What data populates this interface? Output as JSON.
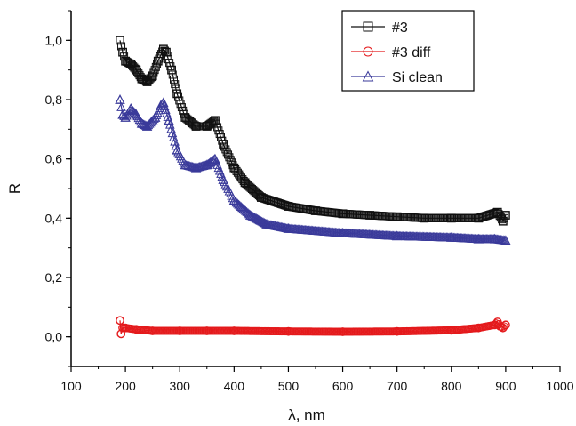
{
  "chart_data": {
    "type": "scatter",
    "title": "",
    "xlabel": "λ, nm",
    "ylabel": "R",
    "xlim": [
      100,
      1000
    ],
    "ylim": [
      -0.1,
      1.1
    ],
    "x_ticks": [
      100,
      200,
      300,
      400,
      500,
      600,
      700,
      800,
      900,
      1000
    ],
    "y_ticks": [
      0.0,
      0.2,
      0.4,
      0.6,
      0.8,
      1.0
    ],
    "y_tick_labels": [
      "0,0",
      "0,2",
      "0,4",
      "0,6",
      "0,8",
      "1,0"
    ],
    "x_tick_labels": [
      "100",
      "200",
      "300",
      "400",
      "500",
      "600",
      "700",
      "800",
      "900",
      "1000"
    ],
    "grid": false,
    "legend_position": "top-right",
    "series": [
      {
        "name": "#3",
        "marker": "square",
        "color": "#111111",
        "points": [
          [
            190,
            1.0
          ],
          [
            195,
            0.96
          ],
          [
            200,
            0.93
          ],
          [
            210,
            0.92
          ],
          [
            220,
            0.9
          ],
          [
            230,
            0.87
          ],
          [
            240,
            0.86
          ],
          [
            250,
            0.88
          ],
          [
            260,
            0.93
          ],
          [
            270,
            0.97
          ],
          [
            275,
            0.96
          ],
          [
            285,
            0.9
          ],
          [
            295,
            0.82
          ],
          [
            310,
            0.74
          ],
          [
            330,
            0.71
          ],
          [
            350,
            0.71
          ],
          [
            365,
            0.73
          ],
          [
            380,
            0.65
          ],
          [
            400,
            0.57
          ],
          [
            420,
            0.52
          ],
          [
            450,
            0.47
          ],
          [
            500,
            0.44
          ],
          [
            550,
            0.425
          ],
          [
            600,
            0.415
          ],
          [
            650,
            0.41
          ],
          [
            700,
            0.405
          ],
          [
            750,
            0.4
          ],
          [
            800,
            0.4
          ],
          [
            850,
            0.4
          ],
          [
            885,
            0.42
          ],
          [
            895,
            0.39
          ],
          [
            900,
            0.41
          ]
        ]
      },
      {
        "name": "#3 diff",
        "marker": "circle",
        "color": "#e41a1c",
        "points": [
          [
            190,
            0.055
          ],
          [
            192,
            0.01
          ],
          [
            195,
            0.03
          ],
          [
            200,
            0.03
          ],
          [
            220,
            0.025
          ],
          [
            250,
            0.02
          ],
          [
            300,
            0.02
          ],
          [
            350,
            0.02
          ],
          [
            400,
            0.02
          ],
          [
            500,
            0.018
          ],
          [
            600,
            0.017
          ],
          [
            700,
            0.018
          ],
          [
            800,
            0.022
          ],
          [
            850,
            0.03
          ],
          [
            880,
            0.04
          ],
          [
            885,
            0.05
          ],
          [
            890,
            0.035
          ],
          [
            895,
            0.03
          ],
          [
            900,
            0.04
          ]
        ]
      },
      {
        "name": "Si clean",
        "marker": "triangle",
        "color": "#3a3a9a",
        "points": [
          [
            190,
            0.8
          ],
          [
            195,
            0.75
          ],
          [
            200,
            0.74
          ],
          [
            210,
            0.77
          ],
          [
            220,
            0.75
          ],
          [
            230,
            0.72
          ],
          [
            240,
            0.71
          ],
          [
            255,
            0.74
          ],
          [
            265,
            0.78
          ],
          [
            270,
            0.79
          ],
          [
            280,
            0.73
          ],
          [
            295,
            0.63
          ],
          [
            310,
            0.58
          ],
          [
            330,
            0.57
          ],
          [
            350,
            0.58
          ],
          [
            365,
            0.6
          ],
          [
            380,
            0.53
          ],
          [
            400,
            0.46
          ],
          [
            430,
            0.41
          ],
          [
            460,
            0.38
          ],
          [
            500,
            0.365
          ],
          [
            600,
            0.35
          ],
          [
            700,
            0.34
          ],
          [
            800,
            0.335
          ],
          [
            850,
            0.33
          ],
          [
            880,
            0.33
          ],
          [
            900,
            0.325
          ]
        ]
      }
    ]
  }
}
